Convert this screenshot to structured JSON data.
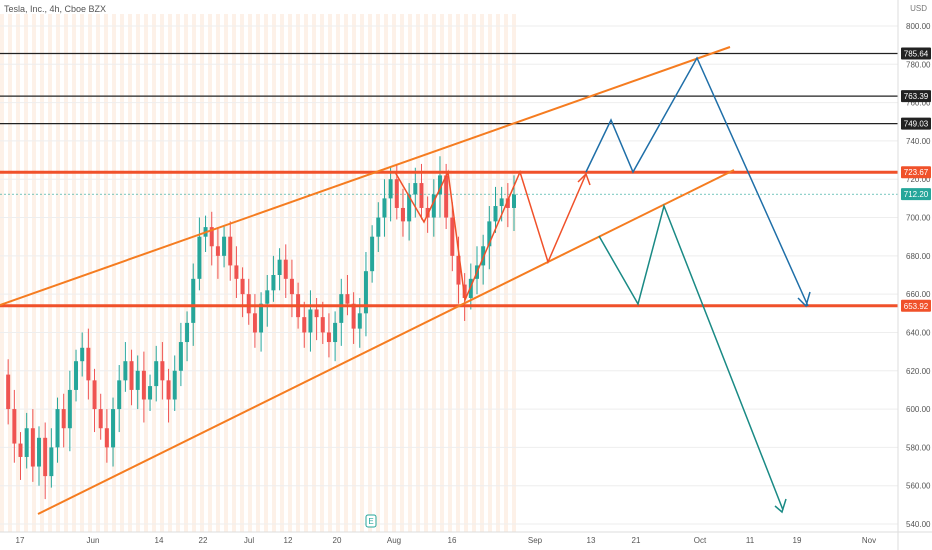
{
  "header": {
    "title": "Tesla, Inc., 4h, Cboe BZX",
    "currency": "USD"
  },
  "chart_data": {
    "type": "candlestick",
    "title": "Tesla, Inc., 4h, Cboe BZX",
    "currency": "USD",
    "ylim": [
      535,
      805
    ],
    "y_ticks": [
      540,
      560,
      580,
      600,
      620,
      640,
      660,
      680,
      700,
      720,
      740,
      760,
      780,
      800
    ],
    "x_ticks": [
      "17",
      "Jun",
      "14",
      "22",
      "Jul",
      "12",
      "20",
      "Aug",
      "16",
      "Sep",
      "13",
      "21",
      "Oct",
      "11",
      "19",
      "Nov"
    ],
    "price_levels": [
      {
        "label": "785.64",
        "value": 785.64,
        "color": "#222222"
      },
      {
        "label": "763.39",
        "value": 763.39,
        "color": "#222222"
      },
      {
        "label": "749.03",
        "value": 749.03,
        "color": "#222222"
      },
      {
        "label": "723.67",
        "value": 723.67,
        "color": "#f0512a"
      },
      {
        "label": "712.20",
        "value": 712.2,
        "color": "#26a69a"
      },
      {
        "label": "653.92",
        "value": 653.92,
        "color": "#f0512a"
      }
    ],
    "last_price": 712.2,
    "earnings_marker": "E",
    "candle_path": [
      [
        0,
        618
      ],
      [
        1,
        600
      ],
      [
        2,
        582
      ],
      [
        3,
        575
      ],
      [
        4,
        590
      ],
      [
        5,
        570
      ],
      [
        6,
        585
      ],
      [
        7,
        565
      ],
      [
        8,
        580
      ],
      [
        9,
        600
      ],
      [
        10,
        590
      ],
      [
        11,
        610
      ],
      [
        12,
        625
      ],
      [
        13,
        632
      ],
      [
        14,
        615
      ],
      [
        15,
        600
      ],
      [
        16,
        590
      ],
      [
        17,
        580
      ],
      [
        18,
        600
      ],
      [
        19,
        615
      ],
      [
        20,
        625
      ],
      [
        21,
        610
      ],
      [
        22,
        620
      ],
      [
        23,
        605
      ],
      [
        24,
        612
      ],
      [
        25,
        625
      ],
      [
        26,
        615
      ],
      [
        27,
        605
      ],
      [
        28,
        620
      ],
      [
        29,
        635
      ],
      [
        30,
        645
      ],
      [
        31,
        668
      ],
      [
        32,
        690
      ],
      [
        33,
        695
      ],
      [
        34,
        685
      ],
      [
        35,
        680
      ],
      [
        36,
        690
      ],
      [
        37,
        675
      ],
      [
        38,
        668
      ],
      [
        39,
        660
      ],
      [
        40,
        650
      ],
      [
        41,
        640
      ],
      [
        42,
        655
      ],
      [
        43,
        662
      ],
      [
        44,
        670
      ],
      [
        45,
        678
      ],
      [
        46,
        668
      ],
      [
        47,
        660
      ],
      [
        48,
        648
      ],
      [
        49,
        640
      ],
      [
        50,
        652
      ],
      [
        51,
        648
      ],
      [
        52,
        640
      ],
      [
        53,
        635
      ],
      [
        54,
        645
      ],
      [
        55,
        660
      ],
      [
        56,
        655
      ],
      [
        57,
        642
      ],
      [
        58,
        650
      ],
      [
        59,
        672
      ],
      [
        60,
        690
      ],
      [
        61,
        700
      ],
      [
        62,
        710
      ],
      [
        63,
        720
      ],
      [
        64,
        705
      ],
      [
        65,
        698
      ],
      [
        66,
        712
      ],
      [
        67,
        718
      ],
      [
        68,
        705
      ],
      [
        69,
        700
      ],
      [
        70,
        712
      ],
      [
        71,
        722
      ],
      [
        72,
        700
      ],
      [
        73,
        680
      ],
      [
        74,
        665
      ],
      [
        75,
        658
      ],
      [
        76,
        668
      ],
      [
        77,
        675
      ],
      [
        78,
        685
      ],
      [
        79,
        698
      ],
      [
        80,
        706
      ],
      [
        81,
        710
      ],
      [
        82,
        705
      ],
      [
        83,
        712
      ]
    ],
    "candle_x_range": [
      0,
      83
    ],
    "annotations": {
      "channel_upper": {
        "x": [
          0,
          43
        ],
        "y": [
          652,
          724
        ]
      },
      "channel_lower": {
        "x": [
          6,
          76
        ],
        "y": [
          548,
          656
        ]
      }
    }
  }
}
